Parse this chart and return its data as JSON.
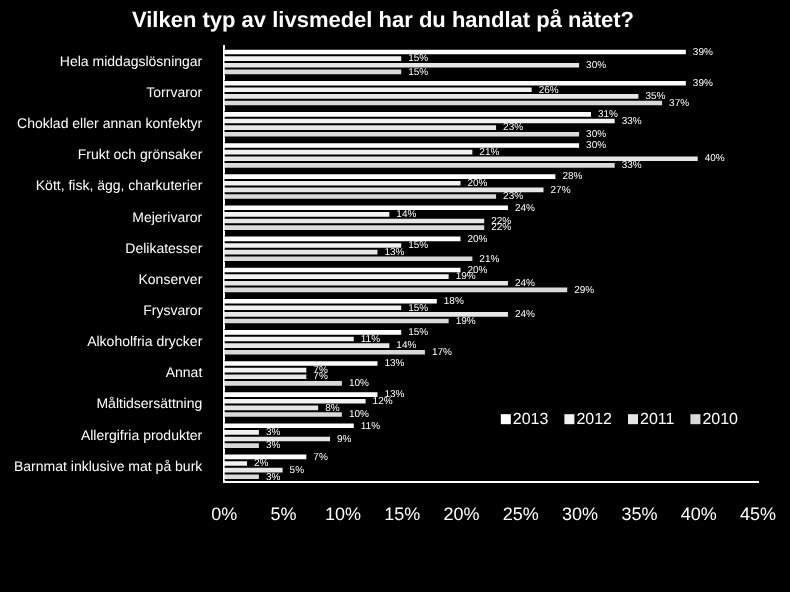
{
  "chart_data": {
    "type": "bar",
    "orientation": "horizontal",
    "title": "Vilken typ av livsmedel har du handlat på nätet?",
    "categories": [
      "Hela middagslösningar",
      "Torrvaror",
      "Choklad eller annan konfektyr",
      "Frukt och grönsaker",
      "Kött, fisk, ägg, charkuterier",
      "Mejerivaror",
      "Delikatesser",
      "Konserver",
      "Frysvaror",
      "Alkoholfria drycker",
      "Annat",
      "Måltidsersättning",
      "Allergifria produkter",
      "Barnmat inklusive mat på burk"
    ],
    "series": [
      {
        "name": "2013",
        "color": "#ffffff",
        "values": [
          39,
          39,
          31,
          30,
          28,
          24,
          20,
          20,
          18,
          15,
          13,
          13,
          11,
          7
        ],
        "value_labels": [
          "39%",
          "39%",
          "31%",
          "30%",
          "28%",
          "24%",
          "20%",
          "20%",
          "18%",
          "15%",
          "13%",
          "13%",
          "11%",
          "7%"
        ]
      },
      {
        "name": "2012",
        "color": "#f2f2f2",
        "values": [
          15,
          26,
          33,
          21,
          20,
          14,
          15,
          19,
          15,
          11,
          7,
          12,
          3,
          2
        ],
        "value_labels": [
          "15%",
          "26%",
          "33%",
          "21%",
          "20%",
          "14%",
          "15%",
          "19%",
          "15%",
          "11%",
          "7%",
          "12%",
          "3%",
          "2%"
        ]
      },
      {
        "name": "2011",
        "color": "#e6e6e6",
        "values": [
          30,
          35,
          23,
          40,
          27,
          22,
          13,
          24,
          24,
          14,
          7,
          8,
          9,
          5
        ],
        "value_labels": [
          "30%",
          "35%",
          "23%",
          "40%",
          "27%",
          "22%",
          "13%",
          "24%",
          "24%",
          "14%",
          "7%",
          "8%",
          "9%",
          "5%"
        ]
      },
      {
        "name": "2010",
        "color": "#d9d9d9",
        "values": [
          15,
          37,
          30,
          33,
          23,
          22,
          21,
          29,
          19,
          17,
          10,
          10,
          3,
          3
        ],
        "value_labels": [
          "15%",
          "37%",
          "30%",
          "33%",
          "23%",
          "22%",
          "21%",
          "29%",
          "19%",
          "17%",
          "10%",
          "10%",
          "3%",
          "3%"
        ]
      }
    ],
    "xlim": [
      0,
      45
    ],
    "xticks": [
      {
        "value": 0,
        "label": "0%"
      },
      {
        "value": 5,
        "label": "5%"
      },
      {
        "value": 10,
        "label": "10%"
      },
      {
        "value": 15,
        "label": "15%"
      },
      {
        "value": 20,
        "label": "20%"
      },
      {
        "value": 25,
        "label": "25%"
      },
      {
        "value": 30,
        "label": "30%"
      },
      {
        "value": 35,
        "label": "35%"
      },
      {
        "value": 40,
        "label": "40%"
      },
      {
        "value": 45,
        "label": "45%"
      }
    ],
    "grid": false,
    "legend": "bottom right"
  }
}
